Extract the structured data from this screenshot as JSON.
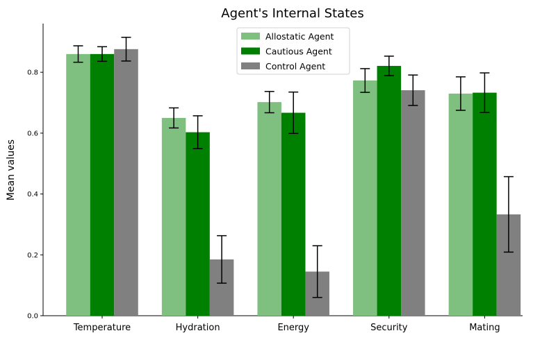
{
  "chart_data": {
    "type": "bar",
    "title": "Agent's Internal States",
    "xlabel": "",
    "ylabel": "Mean values",
    "categories": [
      "Temperature",
      "Hydration",
      "Energy",
      "Security",
      "Mating"
    ],
    "series": [
      {
        "name": "Allostatic Agent",
        "color": "#7fbf7f",
        "values": [
          0.86,
          0.65,
          0.702,
          0.773,
          0.73
        ],
        "errors": [
          0.027,
          0.033,
          0.035,
          0.039,
          0.055
        ]
      },
      {
        "name": "Cautious Agent",
        "color": "#008000",
        "values": [
          0.86,
          0.603,
          0.667,
          0.821,
          0.733
        ],
        "errors": [
          0.024,
          0.054,
          0.068,
          0.032,
          0.065
        ]
      },
      {
        "name": "Control Agent",
        "color": "#808080",
        "values": [
          0.876,
          0.185,
          0.145,
          0.741,
          0.333
        ],
        "errors": [
          0.039,
          0.078,
          0.085,
          0.05,
          0.124
        ]
      }
    ],
    "ylim": [
      0,
      0.96
    ],
    "yticks": [
      "0.0",
      "0.2",
      "0.4",
      "0.6",
      "0.8"
    ],
    "grid": false,
    "legend": "top-center"
  }
}
